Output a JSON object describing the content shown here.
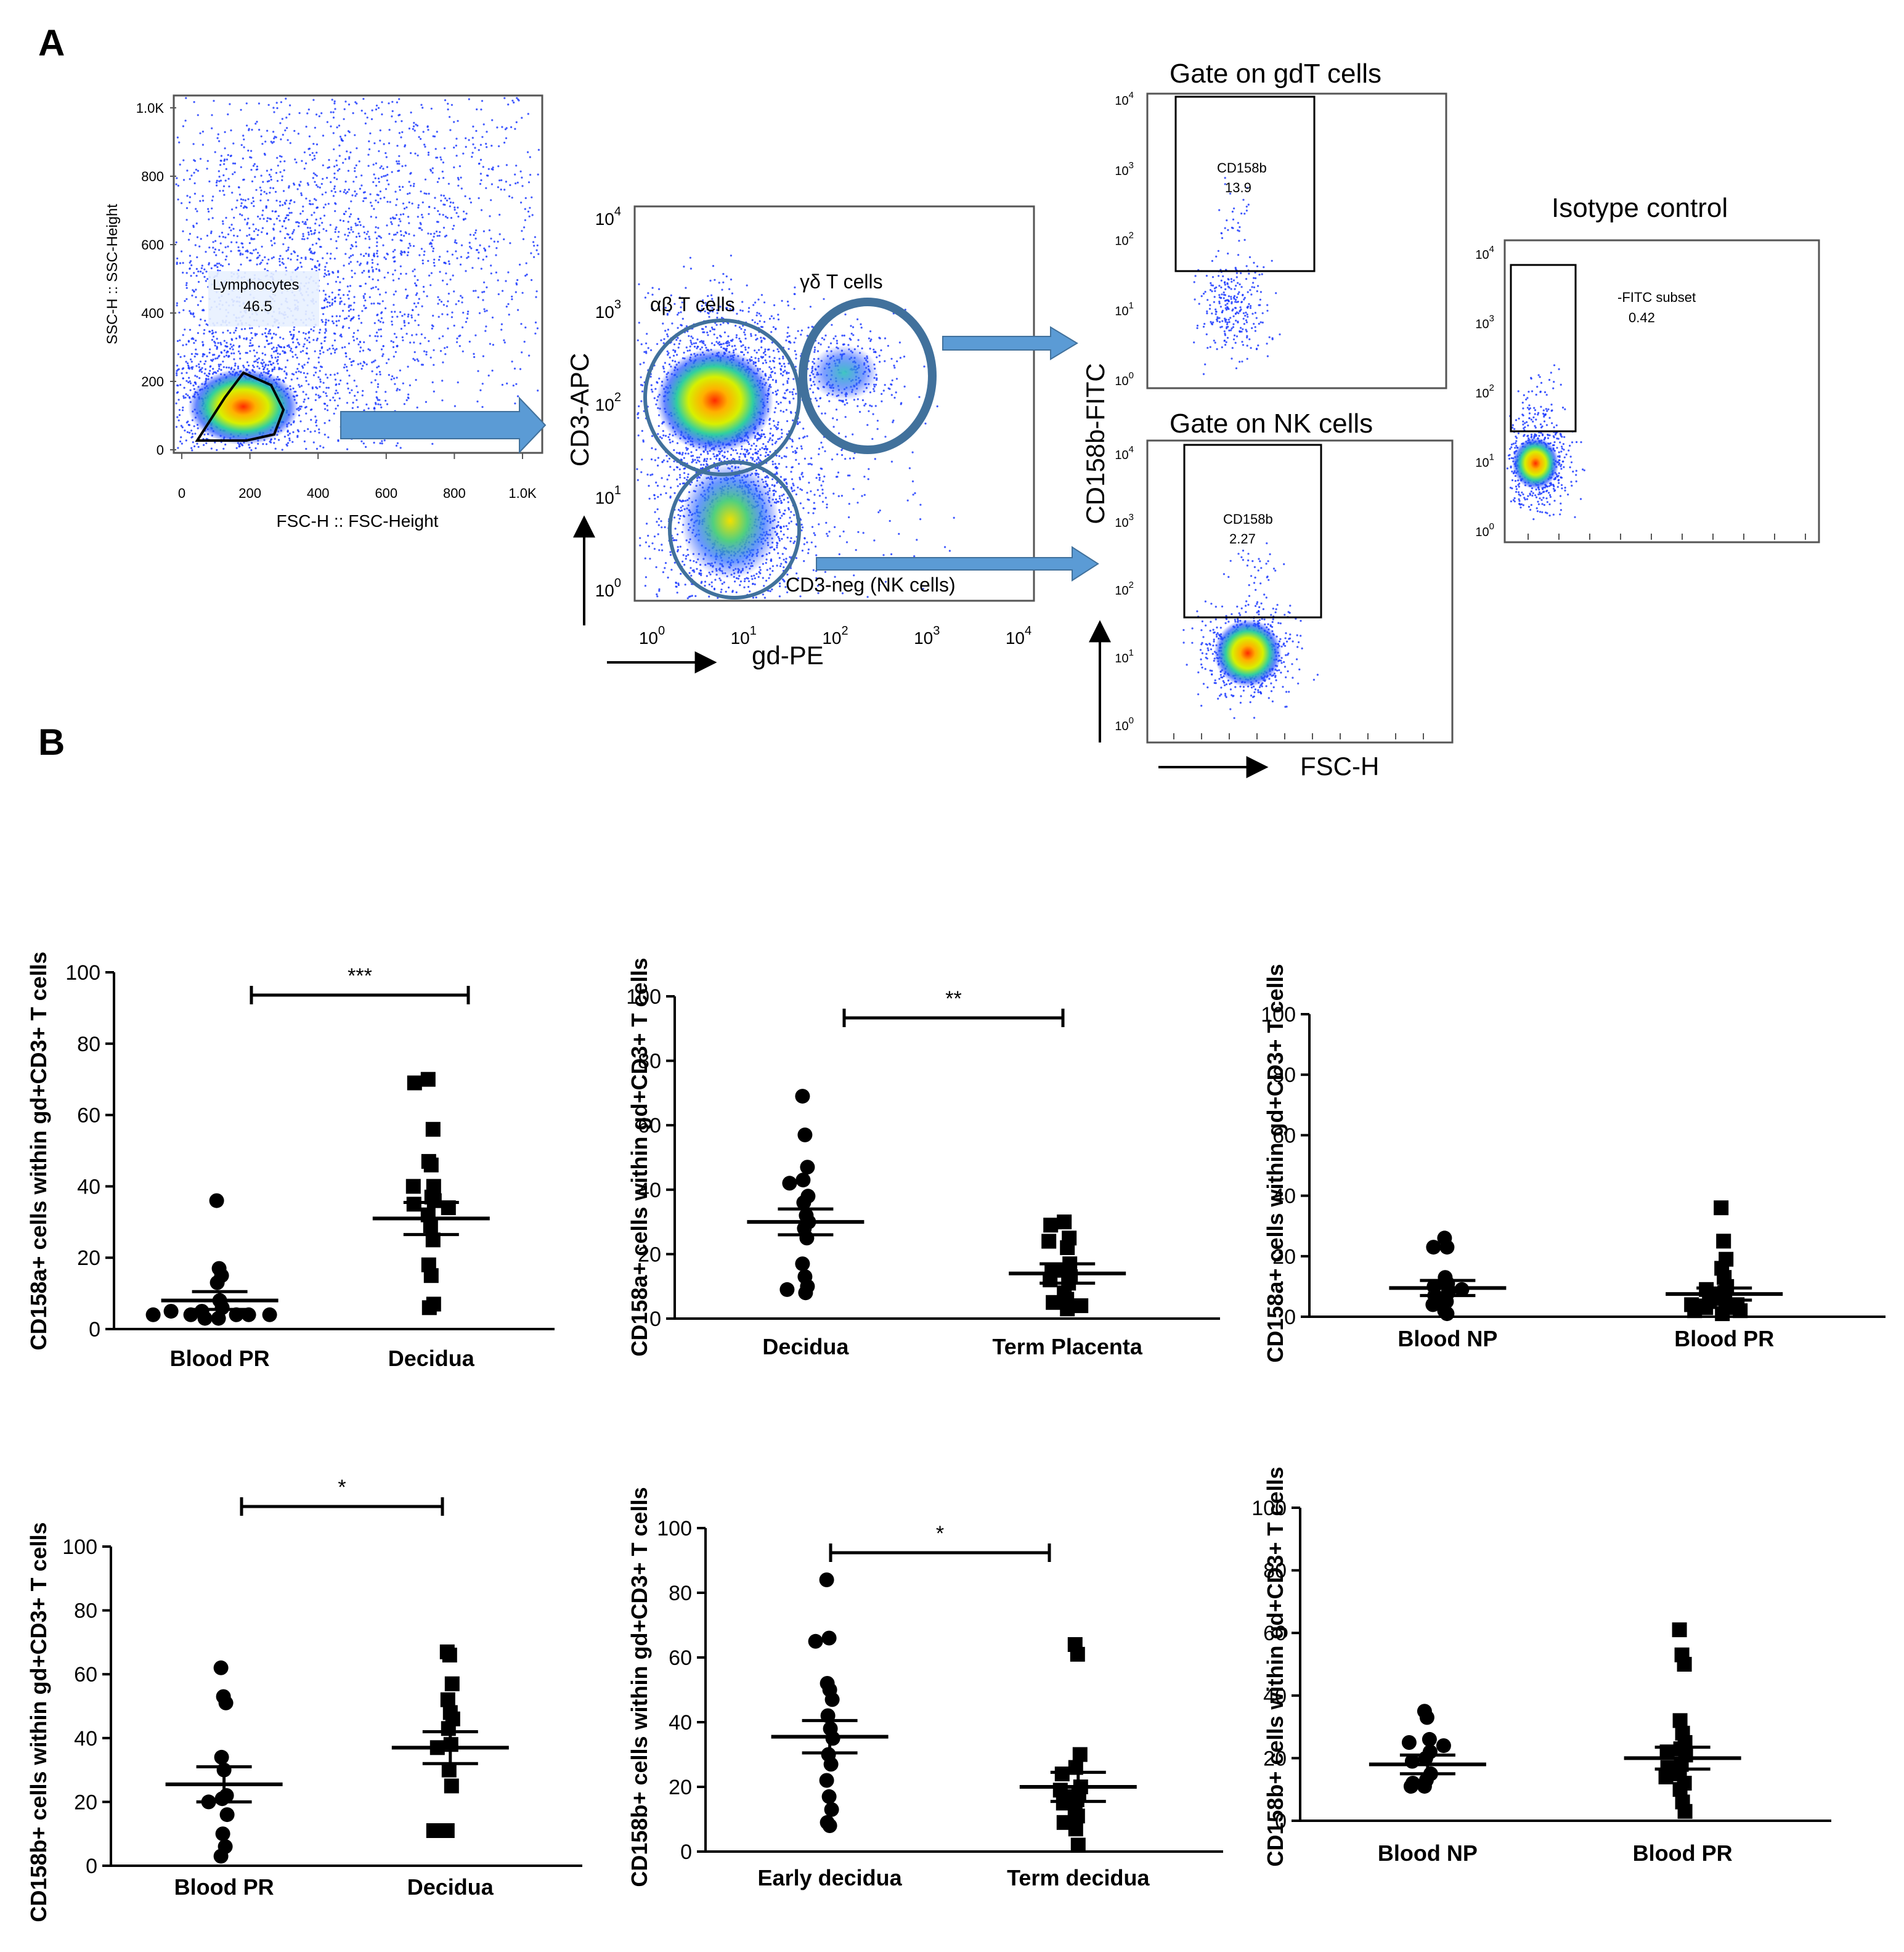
{
  "panel_labels": {
    "a": "A",
    "b": "B"
  },
  "flow": {
    "p1": {
      "ylabel": "SSC-H :: SSC-Height",
      "xlabel": "FSC-H :: FSC-Height",
      "gate_name": "Lymphocytes",
      "gate_value": "46.5",
      "ticks": [
        "0",
        "200",
        "400",
        "600",
        "800",
        "1.0K"
      ]
    },
    "p2": {
      "ylabel": "CD3-APC",
      "xlabel": "gd-PE",
      "ab_label": "αβ T  cells",
      "gd_label": "γδ T  cells",
      "nk_label": "CD3-neg (NK cells)"
    },
    "p3": {
      "title": "Gate on gdT cells",
      "gate_name": "CD158b",
      "gate_value": "13.9"
    },
    "p4": {
      "title": "Gate on NK cells",
      "gate_name": "CD158b",
      "gate_value": "2.27",
      "xlabel": "FSC-H"
    },
    "p5": {
      "title": "Isotype control",
      "gate_name": "-FITC subset",
      "gate_value": "0.42"
    },
    "shared_ylabel": "CD158b-FITC",
    "log_tick_base": "10",
    "log_tick_exps": [
      "0",
      "1",
      "2",
      "3",
      "4"
    ]
  },
  "chart_data": [
    {
      "type": "scatter",
      "ylabel": "CD158a+ cells within gd+CD3+ T cells",
      "ylim": [
        0,
        100
      ],
      "yticks": [
        "0",
        "20",
        "40",
        "60",
        "80",
        "100"
      ],
      "categories": [
        "Blood PR",
        "Decidua"
      ],
      "significance": "***",
      "series": [
        {
          "name": "Blood PR",
          "marker": "circle",
          "mean": 8,
          "sem": 2.5,
          "values": [
            36,
            17,
            15,
            13,
            8,
            6,
            5,
            4,
            4,
            3,
            3,
            4,
            5,
            4,
            4
          ]
        },
        {
          "name": "Decidua",
          "marker": "square",
          "mean": 31,
          "sem": 4.5,
          "values": [
            70,
            69,
            56,
            47,
            46,
            40,
            40,
            37,
            36,
            35,
            34,
            32,
            29,
            25,
            18,
            15,
            7,
            6
          ]
        }
      ]
    },
    {
      "type": "scatter",
      "ylabel": "CD158a+ cells within gd+CD3+ T cells",
      "ylim": [
        0,
        100
      ],
      "yticks": [
        "0",
        "20",
        "40",
        "60",
        "80",
        "100"
      ],
      "categories": [
        "Decidua",
        "Term Placenta"
      ],
      "significance": "**",
      "series": [
        {
          "name": "Decidua",
          "marker": "circle",
          "mean": 30,
          "sem": 4,
          "values": [
            69,
            57,
            47,
            43,
            42,
            38,
            36,
            32,
            30,
            28,
            25,
            17,
            13,
            10,
            9,
            8
          ]
        },
        {
          "name": "Term Placenta",
          "marker": "square",
          "mean": 14,
          "sem": 3,
          "values": [
            30,
            29,
            25,
            24,
            22,
            17,
            15,
            15,
            13,
            12,
            11,
            8,
            6,
            5,
            4,
            3
          ]
        }
      ]
    },
    {
      "type": "scatter",
      "ylabel": "CD158a+ cells within gd+CD3+ T cells",
      "ylim": [
        0,
        100
      ],
      "yticks": [
        "0",
        "20",
        "40",
        "60",
        "80",
        "100"
      ],
      "categories": [
        "Blood NP",
        "Blood PR"
      ],
      "significance": "",
      "series": [
        {
          "name": "Blood NP",
          "marker": "circle",
          "mean": 9.5,
          "sem": 2.5,
          "values": [
            26,
            23,
            23,
            13,
            11,
            10,
            9,
            8,
            7,
            5,
            4,
            2,
            1
          ]
        },
        {
          "name": "Blood PR",
          "marker": "square",
          "mean": 7.5,
          "sem": 2,
          "values": [
            36,
            25,
            19,
            16,
            13,
            10,
            9,
            8,
            7,
            6,
            5,
            4,
            4,
            3,
            3,
            2,
            2,
            1
          ]
        }
      ]
    },
    {
      "type": "scatter",
      "ylabel": "CD158b+ cells within gd+CD3+ T cells",
      "ylim": [
        0,
        100
      ],
      "yticks": [
        "0",
        "20",
        "40",
        "60",
        "80",
        "100"
      ],
      "categories": [
        "Blood PR",
        "Decidua"
      ],
      "significance": "*",
      "series": [
        {
          "name": "Blood PR",
          "marker": "circle",
          "mean": 25.5,
          "sem": 5.5,
          "values": [
            62,
            53,
            51,
            34,
            30,
            22,
            21,
            20,
            16,
            10,
            6,
            3
          ]
        },
        {
          "name": "Decidua",
          "marker": "square",
          "mean": 37,
          "sem": 5,
          "values": [
            67,
            66,
            57,
            52,
            48,
            46,
            43,
            38,
            37,
            30,
            25,
            11,
            11
          ]
        }
      ]
    },
    {
      "type": "scatter",
      "ylabel": "CD158b+ cells within gd+CD3+ T cells",
      "ylim": [
        0,
        100
      ],
      "yticks": [
        "0",
        "20",
        "40",
        "60",
        "80",
        "100"
      ],
      "categories": [
        "Early decidua",
        "Term decidua"
      ],
      "significance": "*",
      "series": [
        {
          "name": "Early decidua",
          "marker": "circle",
          "mean": 35.5,
          "sem": 5,
          "values": [
            84,
            66,
            65,
            52,
            50,
            47,
            42,
            38,
            35,
            30,
            27,
            22,
            17,
            13,
            9,
            8
          ]
        },
        {
          "name": "Term decidua",
          "marker": "square",
          "mean": 20,
          "sem": 4.5,
          "values": [
            64,
            61,
            30,
            26,
            24,
            20,
            19,
            18,
            17,
            16,
            15,
            13,
            11,
            9,
            7,
            2
          ]
        }
      ]
    },
    {
      "type": "scatter",
      "ylabel": "CD158b+ cells within gd+CD3+ T cells",
      "ylim": [
        0,
        100
      ],
      "yticks": [
        "0",
        "20",
        "40",
        "60",
        "80",
        "100"
      ],
      "categories": [
        "Blood NP",
        "Blood PR"
      ],
      "significance": "",
      "series": [
        {
          "name": "Blood NP",
          "marker": "circle",
          "mean": 18,
          "sem": 3,
          "values": [
            35,
            33,
            26,
            25,
            24,
            22,
            20,
            19,
            15,
            13,
            12,
            11,
            11
          ]
        },
        {
          "name": "Blood PR",
          "marker": "square",
          "mean": 20,
          "sem": 3.5,
          "values": [
            61,
            53,
            50,
            32,
            28,
            25,
            23,
            22,
            21,
            18,
            17,
            15,
            14,
            12,
            10,
            6,
            3
          ]
        }
      ]
    }
  ]
}
